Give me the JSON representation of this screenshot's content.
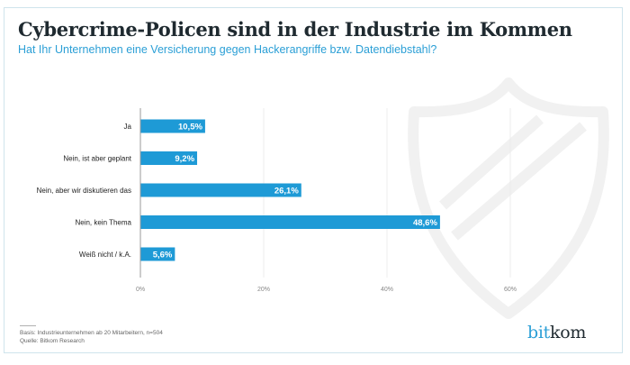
{
  "header": {
    "title": "Cybercrime-Policen sind in der Industrie im Kommen",
    "subtitle": "Hat Ihr Unternehmen eine Versicherung gegen Hackerangriffe bzw. Datendiebstahl?"
  },
  "chart_data": {
    "type": "bar",
    "orientation": "horizontal",
    "title": "Cybercrime-Policen sind in der Industrie im Kommen",
    "subtitle": "Hat Ihr Unternehmen eine Versicherung gegen Hackerangriffe bzw. Datendiebstahl?",
    "categories": [
      "Ja",
      "Nein, ist aber geplant",
      "Nein, aber wir diskutieren das",
      "Nein, kein Thema",
      "Weiß nicht / k.A."
    ],
    "values": [
      10.5,
      9.2,
      26.1,
      48.6,
      5.6
    ],
    "value_labels": [
      "10,5%",
      "9,2%",
      "26,1%",
      "48,6%",
      "5,6%"
    ],
    "xlim": [
      0,
      60
    ],
    "xticks": [
      0,
      20,
      40,
      60
    ],
    "xtick_labels": [
      "0%",
      "20%",
      "40%",
      "60%"
    ],
    "xlabel": "",
    "ylabel": "",
    "grid": true,
    "bar_color": "#1e9ad6"
  },
  "background_icon": "shield-icon",
  "footer": {
    "basis": "Basis: Industrieunternehmen ab 20 Mitarbeitern, n=504",
    "source": "Quelle: Bitkom Research",
    "logo_part1": "bit",
    "logo_part2": "kom"
  },
  "colors": {
    "accent": "#2b9fd6",
    "bar": "#1e9ad6",
    "title": "#1f2a30"
  }
}
